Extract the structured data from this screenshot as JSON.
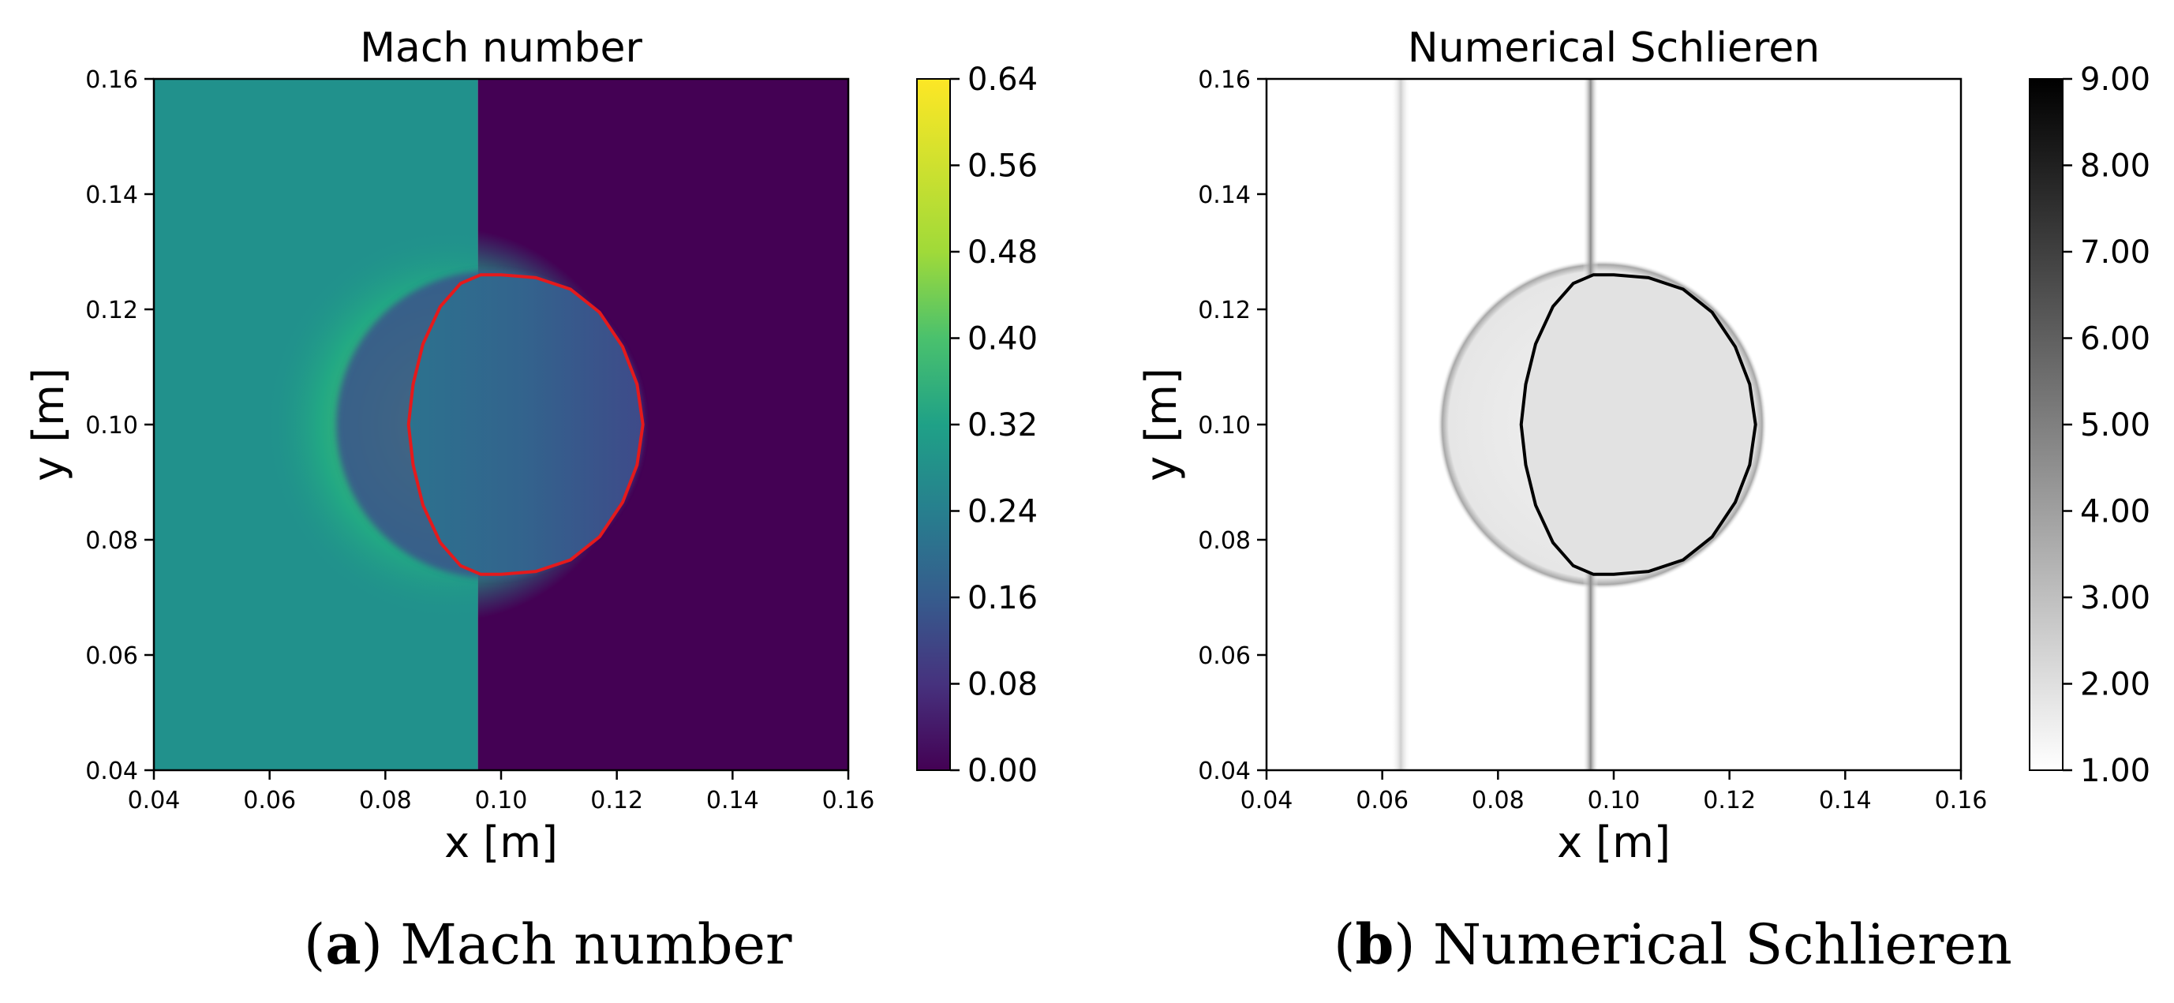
{
  "panels": [
    {
      "caption": {
        "letter": "a",
        "text": "Mach number"
      },
      "chart_data": {
        "type": "heatmap",
        "title": "Mach number",
        "xlabel": "x [m]",
        "ylabel": "y [m]",
        "xlim": [
          0.04,
          0.16
        ],
        "ylim": [
          0.04,
          0.16
        ],
        "xticks": [
          "0.04",
          "0.06",
          "0.08",
          "0.10",
          "0.12",
          "0.14",
          "0.16"
        ],
        "yticks": [
          "0.04",
          "0.06",
          "0.08",
          "0.10",
          "0.12",
          "0.14",
          "0.16"
        ],
        "colormap": "viridis",
        "colorbar": {
          "min": 0.0,
          "max": 0.64,
          "ticks": [
            "0.00",
            "0.08",
            "0.16",
            "0.24",
            "0.32",
            "0.40",
            "0.48",
            "0.56",
            "0.64"
          ]
        },
        "field": {
          "background_left": {
            "x_range": [
              0.04,
              0.096
            ],
            "value": 0.32
          },
          "background_right": {
            "x_range": [
              0.096,
              0.16
            ],
            "value": 0.0
          },
          "shock_line_x": 0.096,
          "disturbance_center": [
            0.098,
            0.1
          ],
          "peak_value": 0.5,
          "bubble_value_range": [
            0.14,
            0.22
          ]
        },
        "interface": {
          "color": "#e41a1c",
          "points": [
            [
              0.0965,
              0.126
            ],
            [
              0.1,
              0.126
            ],
            [
              0.106,
              0.1255
            ],
            [
              0.112,
              0.1235
            ],
            [
              0.117,
              0.1195
            ],
            [
              0.121,
              0.1135
            ],
            [
              0.1235,
              0.107
            ],
            [
              0.1245,
              0.1
            ],
            [
              0.1235,
              0.093
            ],
            [
              0.121,
              0.0865
            ],
            [
              0.117,
              0.0805
            ],
            [
              0.112,
              0.0765
            ],
            [
              0.106,
              0.0745
            ],
            [
              0.1,
              0.074
            ],
            [
              0.0965,
              0.074
            ],
            [
              0.093,
              0.0755
            ],
            [
              0.0895,
              0.0795
            ],
            [
              0.0865,
              0.086
            ],
            [
              0.0848,
              0.093
            ],
            [
              0.084,
              0.1
            ],
            [
              0.0848,
              0.107
            ],
            [
              0.0865,
              0.114
            ],
            [
              0.0895,
              0.1205
            ],
            [
              0.093,
              0.1245
            ]
          ]
        }
      }
    },
    {
      "caption": {
        "letter": "b",
        "text": "Numerical Schlieren"
      },
      "chart_data": {
        "type": "heatmap",
        "title": "Numerical Schlieren",
        "xlabel": "x [m]",
        "ylabel": "y [m]",
        "xlim": [
          0.04,
          0.16
        ],
        "ylim": [
          0.04,
          0.16
        ],
        "xticks": [
          "0.04",
          "0.06",
          "0.08",
          "0.10",
          "0.12",
          "0.14",
          "0.16"
        ],
        "yticks": [
          "0.04",
          "0.06",
          "0.08",
          "0.10",
          "0.12",
          "0.14",
          "0.16"
        ],
        "colormap": "gray_r",
        "colorbar": {
          "min": 1.0,
          "max": 9.0,
          "ticks": [
            "1.00",
            "2.00",
            "3.00",
            "4.00",
            "5.00",
            "6.00",
            "7.00",
            "8.00",
            "9.00"
          ]
        },
        "field": {
          "background_value": 1.0,
          "shock_line_x": 0.096,
          "shock_line_value": 3.5,
          "reflected_line_x": 0.0632,
          "reflected_line_value": 1.8,
          "outer_shock_center": [
            0.098,
            0.1
          ],
          "outer_shock_value": 2.8,
          "inner_region_value": 1.6
        },
        "interface": {
          "color": "#000000",
          "points": [
            [
              0.0965,
              0.126
            ],
            [
              0.1,
              0.126
            ],
            [
              0.106,
              0.1255
            ],
            [
              0.112,
              0.1235
            ],
            [
              0.117,
              0.1195
            ],
            [
              0.121,
              0.1135
            ],
            [
              0.1235,
              0.107
            ],
            [
              0.1245,
              0.1
            ],
            [
              0.1235,
              0.093
            ],
            [
              0.121,
              0.0865
            ],
            [
              0.117,
              0.0805
            ],
            [
              0.112,
              0.0765
            ],
            [
              0.106,
              0.0745
            ],
            [
              0.1,
              0.074
            ],
            [
              0.0965,
              0.074
            ],
            [
              0.093,
              0.0755
            ],
            [
              0.0895,
              0.0795
            ],
            [
              0.0865,
              0.086
            ],
            [
              0.0848,
              0.093
            ],
            [
              0.084,
              0.1
            ],
            [
              0.0848,
              0.107
            ],
            [
              0.0865,
              0.114
            ],
            [
              0.0895,
              0.1205
            ],
            [
              0.093,
              0.1245
            ]
          ]
        }
      }
    }
  ]
}
